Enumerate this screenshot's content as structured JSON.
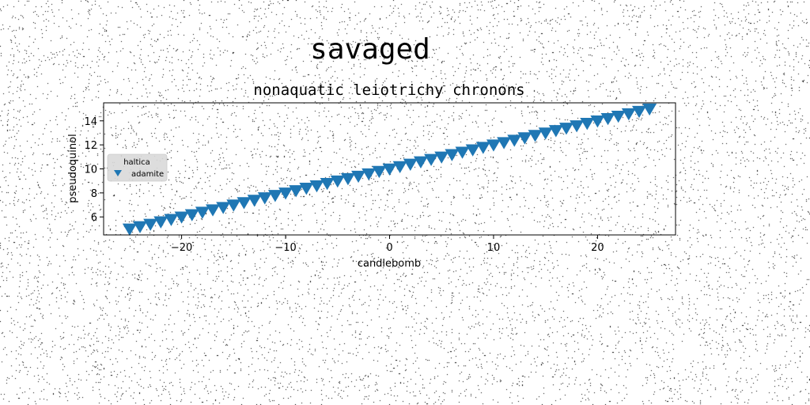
{
  "chart_data": {
    "type": "scatter",
    "suptitle": "savaged",
    "title": "nonaquatic leiotrichy chronons",
    "xlabel": "candlebomb",
    "ylabel": "pseudoquinol",
    "xlim": [
      -27.5,
      27.5
    ],
    "ylim": [
      4.5,
      15.5
    ],
    "xticks": [
      -20,
      -10,
      0,
      10,
      20
    ],
    "xtick_labels": [
      "−20",
      "−10",
      "0",
      "10",
      "20"
    ],
    "yticks": [
      6,
      8,
      10,
      12,
      14
    ],
    "ytick_labels": [
      "6",
      "8",
      "10",
      "12",
      "14"
    ],
    "grid": false,
    "legend": {
      "placement": "center-left",
      "title": "haltica",
      "entries": [
        {
          "label": "adamite",
          "marker": "triangle-down",
          "color": "#1f77b4"
        }
      ]
    },
    "series": [
      {
        "name": "adamite",
        "marker": "triangle-down",
        "color": "#1f77b4",
        "x": [
          -25,
          -24,
          -23,
          -22,
          -21,
          -20,
          -19,
          -18,
          -17,
          -16,
          -15,
          -14,
          -13,
          -12,
          -11,
          -10,
          -9,
          -8,
          -7,
          -6,
          -5,
          -4,
          -3,
          -2,
          -1,
          0,
          1,
          2,
          3,
          4,
          5,
          6,
          7,
          8,
          9,
          10,
          11,
          12,
          13,
          14,
          15,
          16,
          17,
          18,
          19,
          20,
          21,
          22,
          23,
          24,
          25
        ],
        "y": [
          5.0,
          5.2,
          5.4,
          5.6,
          5.8,
          6.0,
          6.2,
          6.4,
          6.6,
          6.8,
          7.0,
          7.2,
          7.4,
          7.6,
          7.8,
          8.0,
          8.2,
          8.4,
          8.6,
          8.8,
          9.0,
          9.2,
          9.4,
          9.6,
          9.8,
          10.0,
          10.2,
          10.4,
          10.6,
          10.8,
          11.0,
          11.2,
          11.4,
          11.6,
          11.8,
          12.0,
          12.2,
          12.4,
          12.6,
          12.8,
          13.0,
          13.2,
          13.4,
          13.6,
          13.8,
          14.0,
          14.2,
          14.4,
          14.6,
          14.8,
          15.0
        ]
      }
    ]
  }
}
